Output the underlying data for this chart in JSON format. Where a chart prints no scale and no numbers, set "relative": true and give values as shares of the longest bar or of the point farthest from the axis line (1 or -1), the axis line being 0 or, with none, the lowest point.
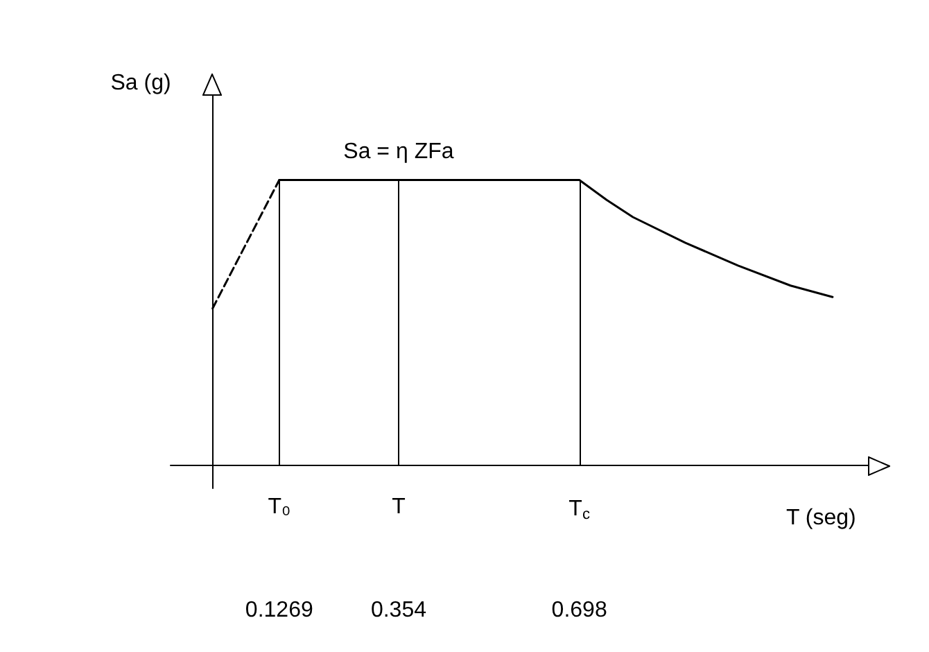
{
  "chart_data": {
    "type": "line",
    "relative": true,
    "xlabel": "T (seg)",
    "ylabel": "Sa (g)",
    "xlim": [
      -0.08,
      1.25
    ],
    "xticks": [
      0.1269,
      0.354,
      0.698
    ],
    "grid": false,
    "marker": "none",
    "series": [
      {
        "x": [
          0,
          0.1269
        ],
        "values": [
          0.55,
          1
        ],
        "color": "#000000",
        "line_style": "dashed"
      },
      {
        "x": [
          0.1269,
          0.354,
          0.698,
          0.75,
          0.8,
          0.9,
          1.0,
          1.1,
          1.18
        ],
        "values": [
          1,
          1,
          1,
          0.93,
          0.87,
          0.78,
          0.7,
          0.63,
          0.59
        ],
        "color": "#000000",
        "line_style": "solid"
      }
    ],
    "ref_lines": [
      {
        "axis": "x",
        "value": 0.1269,
        "label": "T₀"
      },
      {
        "axis": "x",
        "value": 0.354,
        "label": "T"
      },
      {
        "axis": "x",
        "value": 0.698,
        "label": "T$_{c}$"
      }
    ],
    "annotations": [
      {
        "text": "Sa = η ZFa",
        "x": 0.354,
        "y": 1
      }
    ]
  }
}
